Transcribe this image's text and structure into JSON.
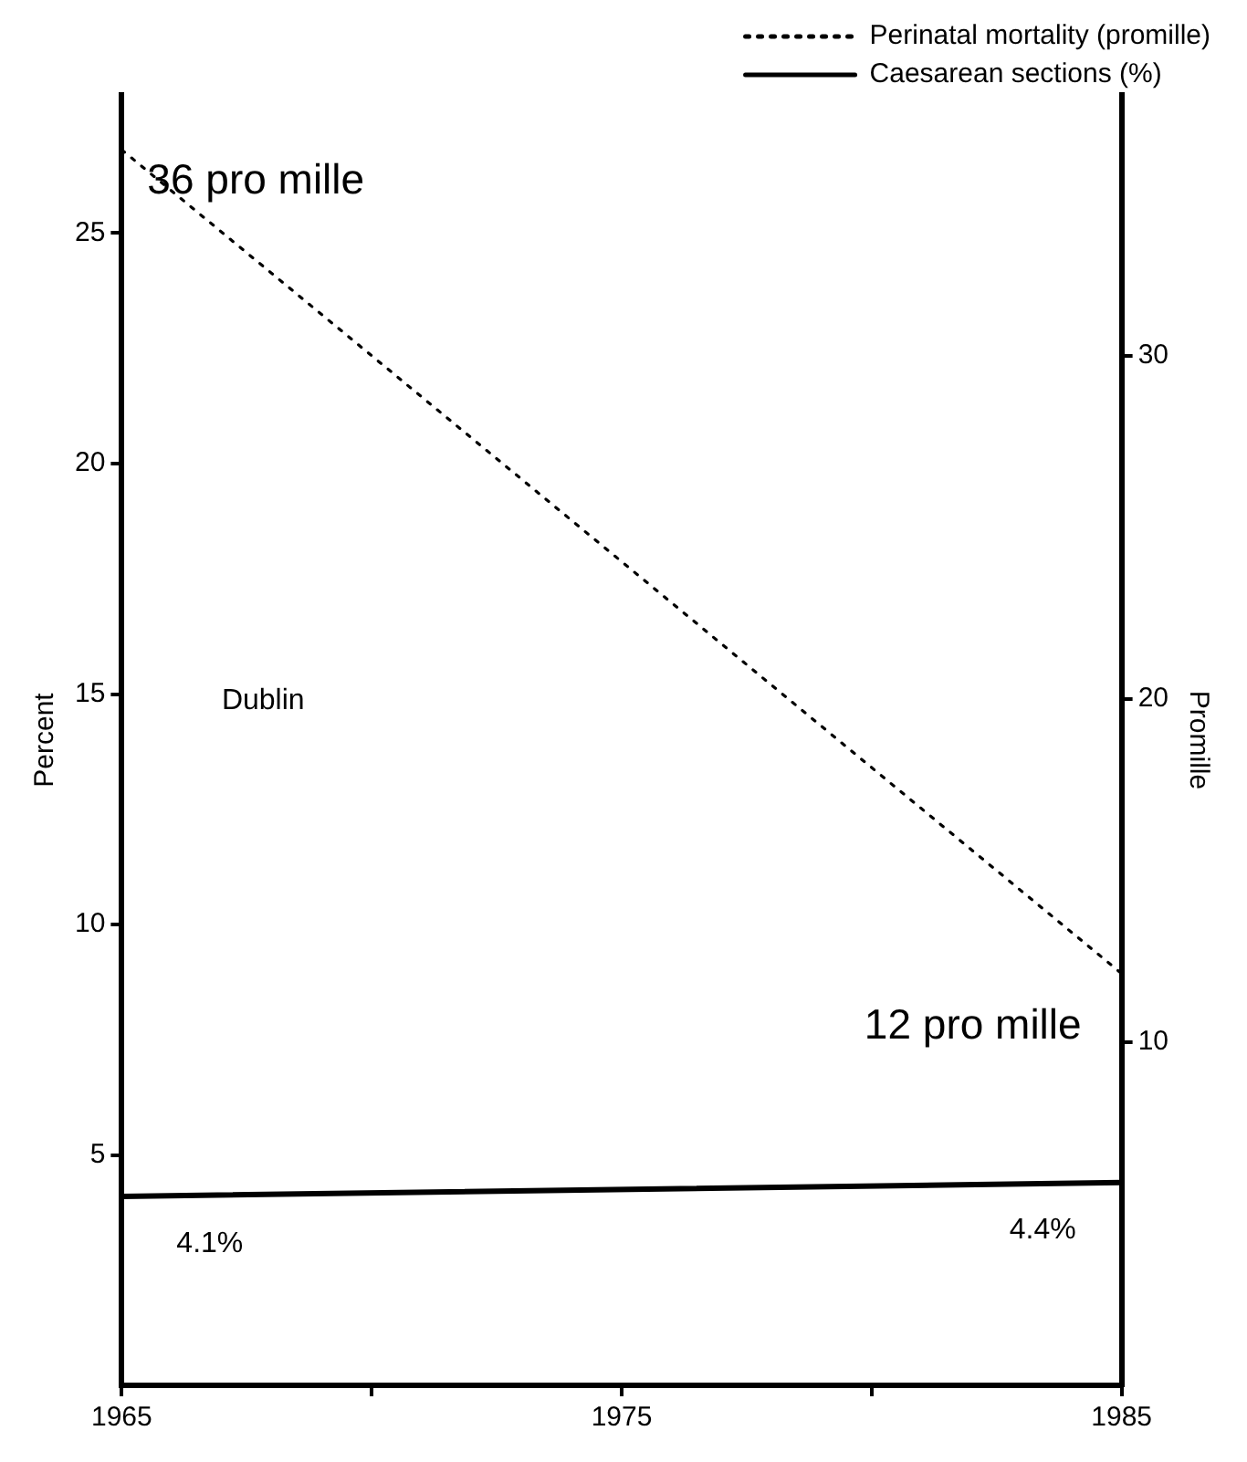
{
  "chart_data": {
    "type": "line",
    "x": [
      1965,
      1985
    ],
    "series": [
      {
        "name": "Perinatal mortality (promille)",
        "color": "#000000",
        "values": [
          36,
          12
        ],
        "axis": "y2",
        "line_style": "dotted",
        "value_labels": [
          "36 pro mille",
          "12 pro mille"
        ]
      },
      {
        "name": "Caesarean sections (%)",
        "color": "#000000",
        "values": [
          4.1,
          4.4
        ],
        "axis": "y",
        "line_style": "solid",
        "value_labels": [
          "4.1%",
          "4.4%"
        ]
      }
    ],
    "ylabel": "Percent",
    "y2label": "Promille",
    "xlim": [
      1965,
      1985
    ],
    "xticks": [
      1965,
      {
        "value": 1970,
        "label": null
      },
      1975,
      {
        "value": 1980,
        "label": null
      },
      1985
    ],
    "ylim": [
      0,
      28
    ],
    "yticks": [
      5,
      10,
      15,
      20,
      25
    ],
    "y2lim": [
      0,
      37.6
    ],
    "y2ticks": [
      10,
      20,
      30
    ],
    "annotations": [
      "Dublin"
    ],
    "legend": "top right",
    "grid": false,
    "marker": "none"
  }
}
